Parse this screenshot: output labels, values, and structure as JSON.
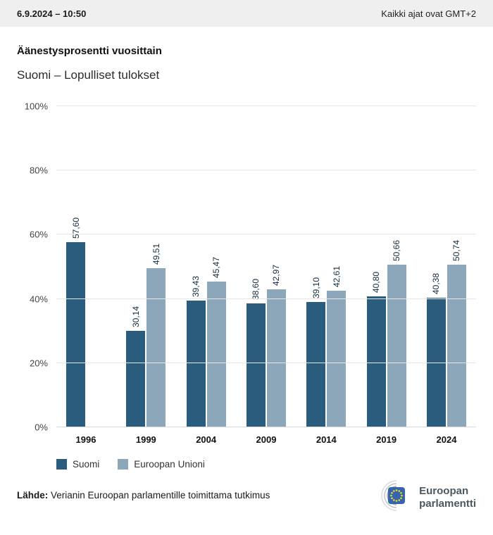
{
  "header": {
    "datetime": "6.9.2024 – 10:50",
    "timezone_note": "Kaikki ajat ovat GMT+2"
  },
  "title": "Äänestysprosentti vuosittain",
  "subtitle": "Suomi – Lopulliset tulokset",
  "chart_data": {
    "type": "bar",
    "title": "Äänestysprosentti vuosittain",
    "subtitle": "Suomi – Lopulliset tulokset",
    "categories": [
      "1996",
      "1999",
      "2004",
      "2009",
      "2014",
      "2019",
      "2024"
    ],
    "series": [
      {
        "name": "Suomi",
        "color": "#2a5c7d",
        "values": [
          57.6,
          30.14,
          39.43,
          38.6,
          39.1,
          40.8,
          40.38
        ],
        "labels": [
          "57,60",
          "30,14",
          "39,43",
          "38,60",
          "39,10",
          "40,80",
          "40,38"
        ]
      },
      {
        "name": "Euroopan Unioni",
        "color": "#8ca6ba",
        "values": [
          null,
          49.51,
          45.47,
          42.97,
          42.61,
          50.66,
          50.74
        ],
        "labels": [
          "",
          "49,51",
          "45,47",
          "42,97",
          "42,61",
          "50,66",
          "50,74"
        ]
      }
    ],
    "y_ticks": [
      "0%",
      "20%",
      "40%",
      "60%",
      "80%",
      "100%"
    ],
    "ylim": [
      0,
      100
    ],
    "grid": true,
    "legend_position": "bottom"
  },
  "footer": {
    "source_label": "Lähde:",
    "source_text": " Verianin Euroopan parlamentille toimittama tutkimus",
    "logo_line1": "Euroopan",
    "logo_line2": "parlamentti"
  }
}
